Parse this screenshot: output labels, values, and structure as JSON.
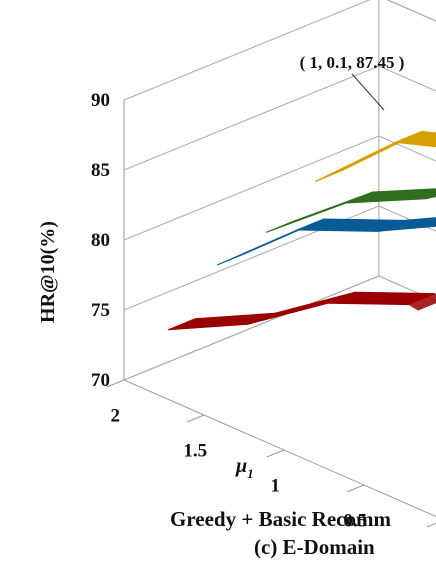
{
  "chart_data": {
    "type": "line",
    "projection": "3d",
    "ylabel": "HR@10(%)",
    "xlabel": "μ",
    "xlabel_subscript": "1",
    "x": [
      2,
      1.5,
      1,
      0.5
    ],
    "x_tick_labels": [
      "2",
      "1.5",
      "1",
      "0.5"
    ],
    "ylim": [
      70,
      90
    ],
    "y_ticks": [
      70,
      75,
      80,
      85,
      90
    ],
    "grid": true,
    "series": [
      {
        "color": "#9b0000",
        "values": [
          72.3,
          75.2,
          79.2,
          81.6
        ]
      },
      {
        "color": "#0a5a96",
        "values": [
          75.5,
          80.5,
          82.9,
          85.9
        ]
      },
      {
        "color": "#2f6e1e",
        "values": [
          76.4,
          81.0,
          83.8,
          87.6
        ]
      },
      {
        "color": "#d69e00",
        "values": [
          78.6,
          83.9,
          85.8,
          87.45
        ]
      }
    ],
    "annotation": "( 1, 0.1, 87.45 )",
    "caption_line1": "Greedy + Basic Recomm",
    "caption_line2": "(c) E-Domain"
  }
}
